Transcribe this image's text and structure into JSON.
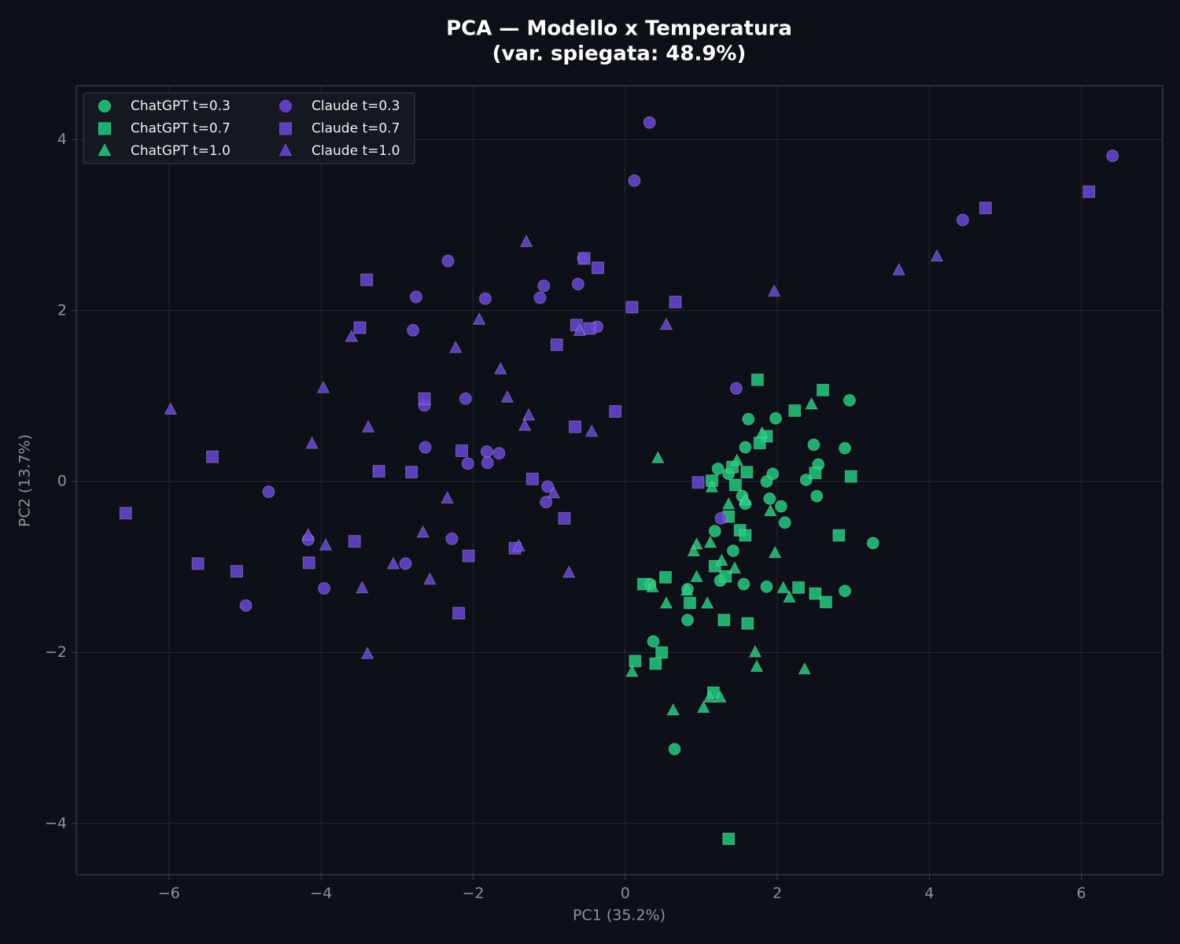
{
  "chart_data": {
    "type": "scatter",
    "title": "PCA — Modello x Temperatura",
    "subtitle": "(var. spiegata: 48.9%)",
    "x_label": "PC1 (35.2%)",
    "y_label": "PC2 (13.7%)",
    "xlim": [
      -7.22,
      7.07
    ],
    "ylim": [
      -4.6,
      4.63
    ],
    "xticks": [
      {
        "value": -6,
        "label": "−6"
      },
      {
        "value": -4,
        "label": "−4"
      },
      {
        "value": -2,
        "label": "−2"
      },
      0,
      2,
      4,
      6
    ],
    "yticks": [
      {
        "value": -4,
        "label": "−4"
      },
      {
        "value": -2,
        "label": "−2"
      },
      0,
      2,
      4
    ],
    "grid": true,
    "legend": "upper left",
    "series": [
      {
        "name": "ChatGPT t=0.3",
        "color": "#1fcc7c",
        "marker": "circle",
        "x": [
          2.95,
          1.98,
          1.62,
          2.48,
          2.89,
          1.58,
          2.54,
          1.22,
          1.36,
          1.94,
          2.38,
          1.86,
          2.52,
          1.54,
          1.9,
          1.58,
          2.05,
          2.1,
          1.18,
          3.26,
          1.42,
          1.25,
          1.56,
          0.33,
          1.86,
          0.82,
          2.89,
          0.82,
          0.37,
          0.65
        ],
        "values": [
          0.95,
          0.74,
          0.73,
          0.43,
          0.39,
          0.4,
          0.2,
          0.15,
          0.09,
          0.09,
          0.02,
          0.0,
          -0.17,
          -0.17,
          -0.2,
          -0.26,
          -0.29,
          -0.48,
          -0.58,
          -0.72,
          -0.81,
          -1.16,
          -1.2,
          -1.2,
          -1.23,
          -1.26,
          -1.28,
          -1.62,
          -1.87,
          -3.13
        ]
      },
      {
        "name": "ChatGPT t=0.7",
        "color": "#1fcc7c",
        "marker": "square",
        "x": [
          1.74,
          2.6,
          2.23,
          1.86,
          1.77,
          1.41,
          1.6,
          2.5,
          2.97,
          1.14,
          1.45,
          1.36,
          1.51,
          1.58,
          2.81,
          1.18,
          1.32,
          0.53,
          0.24,
          2.28,
          2.5,
          0.85,
          2.64,
          1.3,
          1.61,
          0.48,
          0.13,
          0.4,
          1.16,
          1.36
        ],
        "values": [
          1.19,
          1.07,
          0.83,
          0.53,
          0.45,
          0.17,
          0.11,
          0.1,
          0.06,
          0.01,
          -0.04,
          -0.41,
          -0.57,
          -0.63,
          -0.63,
          -0.99,
          -1.11,
          -1.12,
          -1.2,
          -1.24,
          -1.31,
          -1.42,
          -1.41,
          -1.62,
          -1.66,
          -2.0,
          -2.1,
          -2.13,
          -2.47,
          -4.18
        ]
      },
      {
        "name": "ChatGPT t=1.0",
        "color": "#1fcc7c",
        "marker": "triangle",
        "x": [
          2.45,
          1.8,
          0.43,
          1.47,
          1.14,
          1.36,
          1.58,
          1.91,
          0.94,
          1.12,
          0.9,
          1.97,
          1.27,
          1.44,
          0.94,
          0.36,
          2.08,
          0.81,
          2.16,
          0.54,
          1.08,
          1.71,
          1.73,
          2.36,
          0.09,
          1.25,
          1.11,
          0.63,
          1.03
        ],
        "values": [
          0.9,
          0.56,
          0.27,
          0.24,
          -0.07,
          -0.27,
          -0.22,
          -0.35,
          -0.74,
          -0.72,
          -0.82,
          -0.84,
          -0.93,
          -1.02,
          -1.12,
          -1.24,
          -1.25,
          -1.28,
          -1.36,
          -1.43,
          -1.43,
          -2.0,
          -2.17,
          -2.2,
          -2.23,
          -2.53,
          -2.53,
          -2.68,
          -2.65
        ]
      },
      {
        "name": "Claude t=0.3",
        "color": "#6a47da",
        "marker": "circle",
        "x": [
          0.32,
          6.41,
          0.12,
          4.44,
          -2.33,
          -1.07,
          -0.62,
          -2.75,
          -1.84,
          -1.12,
          -2.79,
          -0.37,
          -0.55,
          1.46,
          -2.1,
          -2.64,
          -2.63,
          -1.82,
          -1.66,
          -2.07,
          -1.81,
          -4.69,
          -1.02,
          -1.04,
          1.26,
          -4.17,
          -2.28,
          -2.89,
          -3.96,
          -4.99
        ],
        "values": [
          4.2,
          3.81,
          3.52,
          3.06,
          2.58,
          2.29,
          2.31,
          2.16,
          2.14,
          2.15,
          1.77,
          1.81,
          2.61,
          1.09,
          0.97,
          0.89,
          0.4,
          0.35,
          0.33,
          0.21,
          0.22,
          -0.12,
          -0.06,
          -0.24,
          -0.43,
          -0.68,
          -0.67,
          -0.96,
          -1.25,
          -1.45
        ]
      },
      {
        "name": "Claude t=0.7",
        "color": "#6a47da",
        "marker": "square",
        "x": [
          6.1,
          4.74,
          -3.4,
          -0.36,
          -0.54,
          0.66,
          0.09,
          -3.49,
          -0.64,
          -0.47,
          -0.9,
          -2.64,
          -0.13,
          -0.66,
          -2.15,
          -5.43,
          -3.24,
          -2.81,
          -1.22,
          0.96,
          -6.57,
          -0.8,
          -3.56,
          -1.45,
          -5.62,
          -4.16,
          -2.06,
          -5.11,
          -2.19
        ],
        "values": [
          3.39,
          3.2,
          2.36,
          2.5,
          2.61,
          2.1,
          2.04,
          1.8,
          1.83,
          1.79,
          1.6,
          0.97,
          0.82,
          0.64,
          0.36,
          0.29,
          0.12,
          0.11,
          0.03,
          -0.01,
          -0.37,
          -0.43,
          -0.7,
          -0.78,
          -0.96,
          -0.95,
          -0.87,
          -1.05,
          -1.54
        ]
      },
      {
        "name": "Claude t=1.0",
        "color": "#6a47da",
        "marker": "triangle",
        "x": [
          -1.3,
          4.1,
          3.6,
          1.96,
          -1.92,
          0.54,
          -0.6,
          -3.6,
          -2.23,
          -1.64,
          -3.97,
          -1.55,
          -5.98,
          -1.27,
          -3.38,
          -1.32,
          -0.44,
          -4.12,
          -0.94,
          -2.34,
          -4.17,
          -2.66,
          -3.94,
          -1.4,
          -3.05,
          -0.74,
          -2.57,
          -3.46,
          -3.39
        ],
        "values": [
          2.8,
          2.63,
          2.47,
          2.22,
          1.89,
          1.83,
          1.76,
          1.69,
          1.56,
          1.31,
          1.09,
          0.98,
          0.84,
          0.77,
          0.63,
          0.65,
          0.58,
          0.44,
          -0.14,
          -0.2,
          -0.63,
          -0.6,
          -0.75,
          -0.76,
          -0.97,
          -1.07,
          -1.15,
          -1.25,
          -2.02
        ]
      }
    ]
  }
}
